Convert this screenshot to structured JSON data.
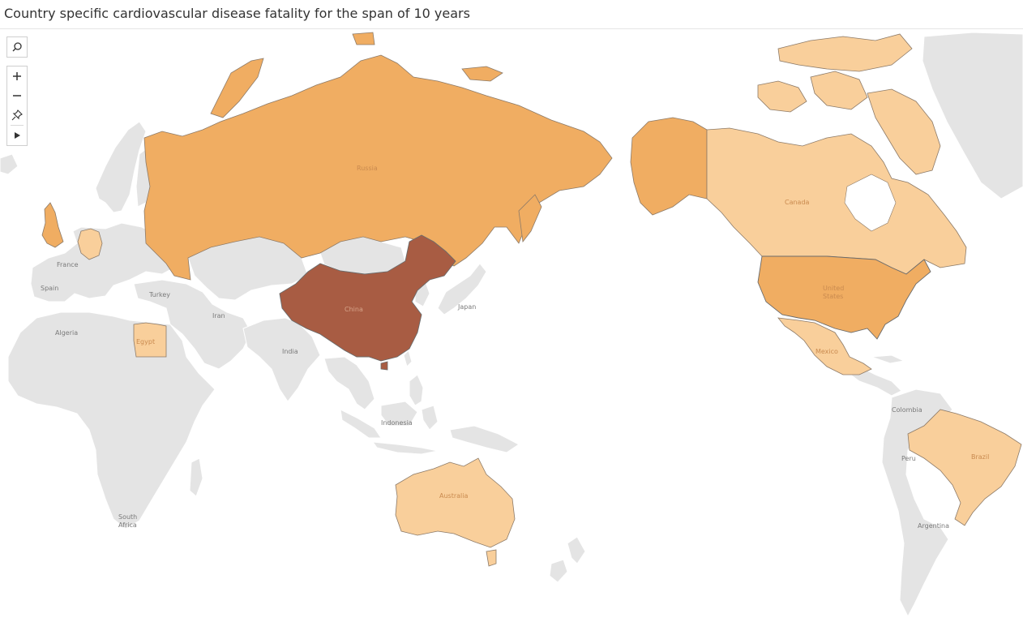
{
  "title": "Country specific cardiovascular disease fatality for the span of 10 years",
  "colors": {
    "no_data": "#e4e4e4",
    "ocean": "#ffffff",
    "border": "#ffffff",
    "highlight_border": "#6b6b6b",
    "scale_low": "#f9cf9b",
    "scale_mid": "#f0ad62",
    "scale_high": "#a85c43"
  },
  "toolbar": {
    "search_icon": "search-icon",
    "zoom_in_icon": "plus-icon",
    "zoom_out_icon": "minus-icon",
    "pin_icon": "pin-icon",
    "expand_icon": "play-icon"
  },
  "country_labels": {
    "russia": "Russia",
    "china": "China",
    "canada": "Canada",
    "united_states_1": "United",
    "united_states_2": "States",
    "mexico": "Mexico",
    "brazil": "Brazil",
    "australia": "Australia",
    "egypt": "Egypt",
    "france": "France",
    "spain": "Spain",
    "turkey": "Turkey",
    "iran": "Iran",
    "japan": "Japan",
    "india": "India",
    "algeria": "Algeria",
    "indonesia": "Indonesia",
    "colombia": "Colombia",
    "peru": "Peru",
    "argentina": "Argentina",
    "south_africa_1": "South",
    "south_africa_2": "Africa"
  }
}
